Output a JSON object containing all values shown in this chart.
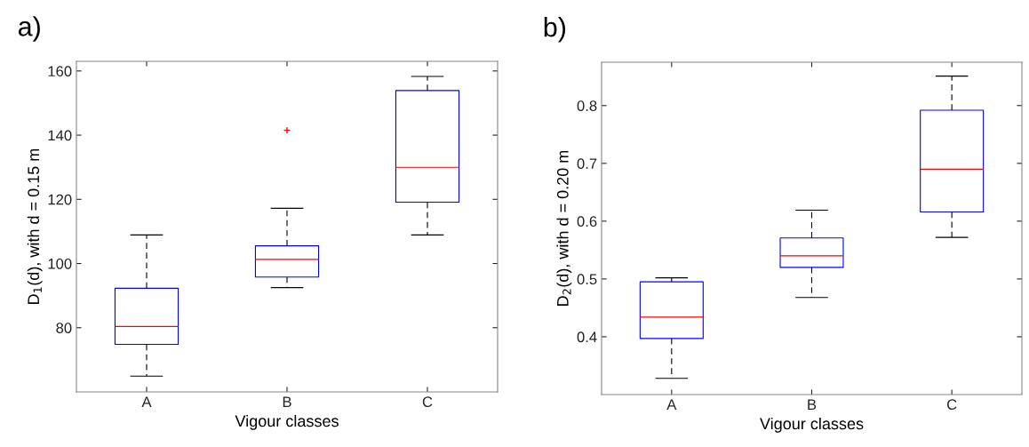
{
  "chart_data": [
    {
      "type": "box",
      "title": "a)",
      "xlabel": "Vigour classes",
      "ylabel": "D$_{1}$(d), with d = 0.15 m",
      "categories": [
        "A",
        "B",
        "C"
      ],
      "ylim": [
        60,
        163
      ],
      "yticks": [
        80,
        100,
        120,
        140,
        160
      ],
      "grid": false,
      "series": [
        {
          "color": "#0000ff",
          "boxes": [
            {
              "low": 64.9,
              "q1": 74.8,
              "median": 80.4,
              "q3": 92.3,
              "high": 108.9
            },
            {
              "low": 92.5,
              "q1": 95.8,
              "median": 101.3,
              "q3": 105.5,
              "high": 117.2,
              "outliers": [
                141.5
              ]
            },
            {
              "low": 108.9,
              "q1": 119.1,
              "median": 130.0,
              "q3": 153.9,
              "high": 158.3
            }
          ]
        }
      ]
    },
    {
      "type": "box",
      "title": "b)",
      "xlabel": "Vigour classes",
      "ylabel": "D$_{2}$(d), with d = 0.20 m",
      "categories": [
        "A",
        "B",
        "C"
      ],
      "ylim": [
        0.3,
        0.875
      ],
      "yticks": [
        0.4,
        0.5,
        0.6,
        0.7,
        0.8
      ],
      "grid": false,
      "series": [
        {
          "color": "#0000ff",
          "boxes": [
            {
              "low": 0.328,
              "q1": 0.397,
              "median": 0.434,
              "q3": 0.495,
              "high": 0.502
            },
            {
              "low": 0.468,
              "q1": 0.52,
              "median": 0.54,
              "q3": 0.571,
              "high": 0.619
            },
            {
              "low": 0.572,
              "q1": 0.616,
              "median": 0.69,
              "q3": 0.792,
              "high": 0.851
            }
          ]
        }
      ]
    }
  ]
}
